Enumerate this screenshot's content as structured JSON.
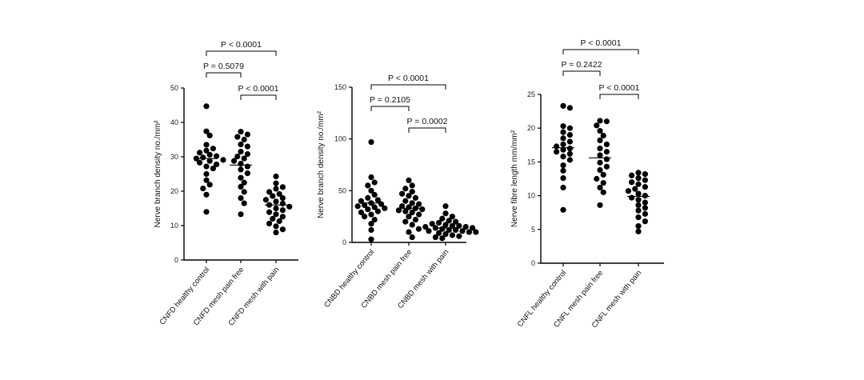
{
  "chart_data": [
    {
      "type": "scatter",
      "ylabel": "Nerve branch density no./mm²",
      "ylim": [
        0,
        50
      ],
      "yticks": [
        0,
        10,
        20,
        30,
        40,
        50
      ],
      "categories": [
        "CNFD healthy control",
        "CNFD mesh pain free",
        "CNFD mesh with pain"
      ],
      "series": [
        {
          "values": [
            44.7,
            37.4,
            36.2,
            33.5,
            32.4,
            31.8,
            31.2,
            30.6,
            30.2,
            29.8,
            29.5,
            29.1,
            28.8,
            28.3,
            27.8,
            27.2,
            26.6,
            25.0,
            23.2,
            21.9,
            20.8,
            19.0,
            14.0
          ],
          "mean": 29.5
        },
        {
          "values": [
            37.3,
            36.5,
            35.8,
            35.0,
            33.6,
            33.0,
            31.5,
            30.8,
            30.1,
            29.5,
            28.8,
            28.0,
            27.2,
            26.3,
            25.2,
            23.9,
            22.5,
            21.3,
            19.8,
            18.0,
            16.5,
            13.3
          ],
          "mean": 27.6
        },
        {
          "values": [
            24.3,
            22.3,
            21.2,
            20.7,
            19.8,
            19.2,
            18.6,
            18.0,
            17.5,
            17.0,
            16.4,
            16.0,
            15.5,
            15.0,
            14.5,
            13.9,
            13.3,
            12.6,
            12.0,
            11.3,
            10.6,
            9.8,
            8.9,
            8.0
          ],
          "mean": 16.0
        }
      ],
      "comparisons": [
        {
          "from": 0,
          "to": 1,
          "label": "P = 0.5079"
        },
        {
          "from": 1,
          "to": 2,
          "label": "P < 0.0001"
        },
        {
          "from": 0,
          "to": 2,
          "label": "P < 0.0001"
        }
      ]
    },
    {
      "type": "scatter",
      "ylabel": "Nerve branch density no./mm²",
      "ylim": [
        0,
        150
      ],
      "yticks": [
        0,
        50,
        100,
        150
      ],
      "categories": [
        "CNBD healthy control",
        "CNBD mesh pain free",
        "CNBD mesh with pain"
      ],
      "series": [
        {
          "values": [
            97,
            63,
            58,
            55,
            50,
            46,
            43,
            41,
            40,
            38,
            37,
            36,
            35,
            34,
            33,
            32,
            30,
            29,
            27,
            25,
            22,
            18,
            12,
            3
          ],
          "mean": 38
        },
        {
          "values": [
            60,
            55,
            52,
            49,
            47,
            45,
            43,
            40,
            38,
            37,
            35,
            34,
            33,
            32,
            31,
            30,
            29,
            27,
            25,
            22,
            20,
            17,
            10,
            5
          ],
          "mean": 33
        },
        {
          "values": [
            35,
            28,
            25,
            23,
            21,
            20,
            19,
            18,
            17,
            16,
            16,
            15,
            15,
            14,
            14,
            13,
            13,
            12,
            12,
            11,
            11,
            10,
            10,
            9,
            8,
            7,
            6,
            5,
            4
          ],
          "mean": 14
        }
      ],
      "comparisons": [
        {
          "from": 0,
          "to": 1,
          "label": "P = 0.2105"
        },
        {
          "from": 1,
          "to": 2,
          "label": "P = 0.0002"
        },
        {
          "from": 0,
          "to": 2,
          "label": "P < 0.0001"
        }
      ]
    },
    {
      "type": "scatter",
      "ylabel": "Nerve fibre length mm/mm²",
      "ylim": [
        0,
        25
      ],
      "yticks": [
        0,
        5,
        10,
        15,
        20,
        25
      ],
      "categories": [
        "CNFL healthy control",
        "CNFL mesh pain free",
        "CNFL mesh with pain"
      ],
      "series": [
        {
          "values": [
            23.3,
            23.0,
            20.3,
            20.0,
            19.4,
            19.0,
            18.5,
            18.0,
            17.6,
            17.3,
            17.0,
            16.8,
            16.5,
            16.2,
            15.8,
            15.3,
            14.5,
            13.7,
            12.6,
            11.2,
            7.9
          ],
          "mean": 17.1
        },
        {
          "values": [
            21.1,
            21.0,
            20.4,
            19.6,
            18.9,
            18.2,
            17.6,
            17.0,
            16.5,
            16.0,
            15.4,
            14.9,
            14.3,
            13.8,
            13.1,
            12.5,
            11.9,
            11.2,
            10.5,
            8.6
          ],
          "mean": 15.6
        },
        {
          "values": [
            13.4,
            13.2,
            13.0,
            12.6,
            12.3,
            12.0,
            11.7,
            11.3,
            11.0,
            10.7,
            10.3,
            10.0,
            9.7,
            9.4,
            9.0,
            8.6,
            8.2,
            7.8,
            7.3,
            6.8,
            6.2,
            5.5,
            4.7
          ],
          "mean": 9.9
        }
      ],
      "comparisons": [
        {
          "from": 0,
          "to": 1,
          "label": "P = 0.2422"
        },
        {
          "from": 1,
          "to": 2,
          "label": "P < 0.0001"
        },
        {
          "from": 0,
          "to": 2,
          "label": "P < 0.0001"
        }
      ]
    }
  ]
}
